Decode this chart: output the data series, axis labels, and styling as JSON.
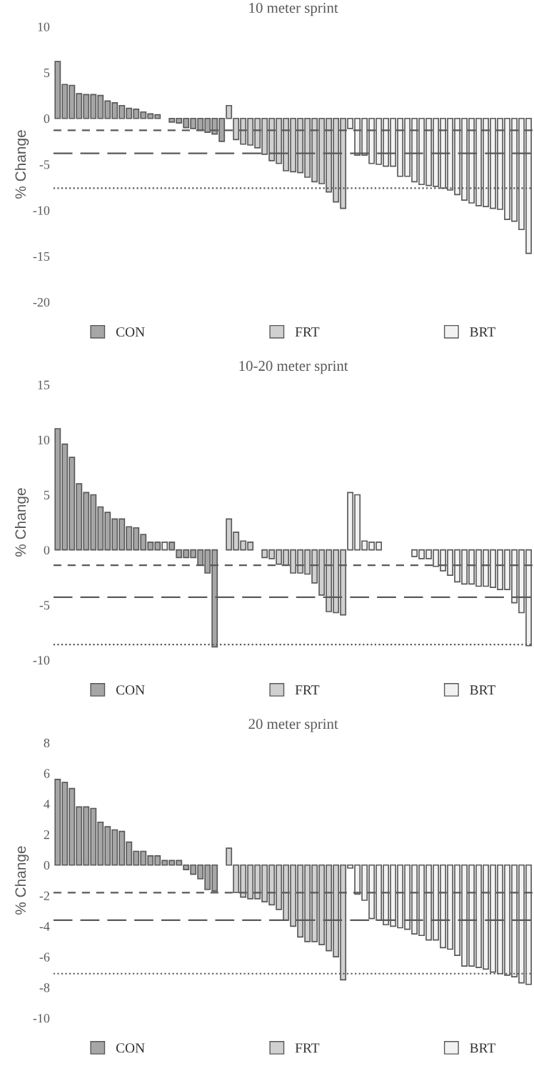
{
  "chart_data": [
    {
      "type": "bar",
      "title": "10 meter sprint",
      "ylabel": "% Change",
      "ylim": [
        -20,
        10
      ],
      "yticks": [
        -20,
        -15,
        -10,
        -5,
        0,
        5,
        10
      ],
      "grid": false,
      "legend": "bottom",
      "tick_labels": "y",
      "categories": [
        null,
        null,
        null,
        null,
        null,
        null,
        null,
        null,
        null,
        null,
        null,
        null,
        null,
        null,
        null,
        null,
        null,
        null,
        null,
        null,
        null,
        null,
        null,
        null,
        null,
        null,
        null,
        null,
        null,
        null,
        null,
        null,
        null,
        null,
        null,
        null,
        null,
        null,
        null,
        null,
        null,
        null,
        null,
        null,
        null,
        null,
        null,
        null,
        null,
        null,
        null,
        null,
        null,
        null,
        null,
        null,
        null,
        null,
        null,
        null,
        null,
        null,
        null,
        null,
        null,
        null,
        null
      ],
      "series": [
        {
          "name": "CON",
          "color": "#a6a6a6",
          "values": [
            6.2,
            3.7,
            3.6,
            2.7,
            2.6,
            2.6,
            2.5,
            1.9,
            1.7,
            1.4,
            1.1,
            1.0,
            0.7,
            0.5,
            0.4,
            null,
            -0.4,
            -0.5,
            -1.0,
            -1.1,
            -1.3,
            -1.5,
            -1.7,
            -2.5,
            null,
            null,
            null,
            null,
            null,
            null,
            null,
            null,
            null,
            null,
            null,
            null,
            null,
            null,
            null,
            null,
            null,
            null,
            null,
            null,
            null,
            null,
            null,
            null,
            null,
            null,
            null,
            null,
            null,
            null,
            null,
            null,
            null,
            null,
            null,
            null,
            null,
            null,
            null,
            null,
            null,
            null,
            null
          ]
        },
        {
          "name": "FRT",
          "color": "#d0d0d0",
          "values": [
            null,
            null,
            null,
            null,
            null,
            null,
            null,
            null,
            null,
            null,
            null,
            null,
            null,
            null,
            null,
            null,
            null,
            null,
            null,
            null,
            null,
            null,
            null,
            null,
            1.4,
            -2.3,
            -2.8,
            -2.9,
            -3.2,
            -3.9,
            -4.6,
            -4.9,
            -5.7,
            -5.8,
            -5.9,
            -6.4,
            -6.9,
            -7.1,
            -8.0,
            -9.1,
            -9.8,
            null,
            null,
            null,
            null,
            null,
            null,
            null,
            null,
            null,
            null,
            null,
            null,
            null,
            null,
            null,
            null,
            null,
            null,
            null,
            null,
            null,
            null,
            null,
            null,
            null,
            null
          ]
        },
        {
          "name": "BRT",
          "color": "#f2f2f2",
          "values": [
            null,
            null,
            null,
            null,
            null,
            null,
            null,
            null,
            null,
            null,
            null,
            null,
            null,
            null,
            null,
            null,
            null,
            null,
            null,
            null,
            null,
            null,
            null,
            null,
            null,
            null,
            null,
            null,
            null,
            null,
            null,
            null,
            null,
            null,
            null,
            null,
            null,
            null,
            null,
            null,
            null,
            -1.1,
            -4.0,
            -4.0,
            -4.9,
            -5.0,
            -5.2,
            -5.2,
            -6.3,
            -6.3,
            -6.9,
            -7.2,
            -7.3,
            -7.4,
            -7.6,
            -7.8,
            -8.3,
            -8.9,
            -9.2,
            -9.5,
            -9.6,
            -9.8,
            -9.9,
            -11.0,
            -11.2,
            -12.1,
            -14.7
          ]
        }
      ],
      "ref_lines": [
        {
          "axis": "y",
          "value": -1.3,
          "color": "#595959",
          "line_style": "dashed"
        },
        {
          "axis": "y",
          "value": -3.8,
          "color": "#595959",
          "line_style": "longdash"
        },
        {
          "axis": "y",
          "value": -7.6,
          "color": "#595959",
          "line_style": "dotted"
        }
      ]
    },
    {
      "type": "bar",
      "title": "10-20 meter sprint",
      "ylabel": "% Change",
      "ylim": [
        -10,
        15
      ],
      "yticks": [
        -10,
        -5,
        0,
        5,
        10,
        15
      ],
      "grid": false,
      "legend": "bottom",
      "tick_labels": "y",
      "categories": [
        null,
        null,
        null,
        null,
        null,
        null,
        null,
        null,
        null,
        null,
        null,
        null,
        null,
        null,
        null,
        null,
        null,
        null,
        null,
        null,
        null,
        null,
        null,
        null,
        null,
        null,
        null,
        null,
        null,
        null,
        null,
        null,
        null,
        null,
        null,
        null,
        null,
        null,
        null,
        null,
        null,
        null,
        null,
        null,
        null,
        null,
        null,
        null,
        null,
        null,
        null,
        null,
        null,
        null,
        null,
        null,
        null,
        null,
        null,
        null,
        null,
        null,
        null,
        null,
        null,
        null,
        null
      ],
      "series": [
        {
          "name": "CON",
          "color": "#a6a6a6",
          "values": [
            11.0,
            9.6,
            8.4,
            6.0,
            5.2,
            5.0,
            3.9,
            3.4,
            2.8,
            2.8,
            2.1,
            2.0,
            1.4,
            0.7,
            0.7,
            null,
            0.7,
            -0.7,
            -0.7,
            -0.7,
            -1.4,
            -2.1,
            -8.8,
            null,
            null,
            null,
            null,
            null,
            null,
            null,
            null,
            null,
            null,
            null,
            null,
            null,
            null,
            null,
            null,
            null,
            null,
            null,
            null,
            null,
            null,
            null,
            null,
            null,
            null,
            null,
            null,
            null,
            null,
            null,
            null,
            null,
            null,
            null,
            null,
            null,
            null,
            null,
            null,
            null,
            null,
            null,
            null
          ]
        },
        {
          "name": "FRT",
          "color": "#d0d0d0",
          "values": [
            null,
            null,
            null,
            null,
            null,
            null,
            null,
            null,
            null,
            null,
            null,
            null,
            null,
            null,
            null,
            null,
            null,
            null,
            null,
            null,
            null,
            null,
            null,
            null,
            2.8,
            1.6,
            0.8,
            0.7,
            null,
            -0.7,
            -0.8,
            -1.3,
            -1.4,
            -2.1,
            -2.1,
            -2.2,
            -3.0,
            -4.1,
            -5.6,
            -5.7,
            -5.9,
            null,
            null,
            null,
            null,
            null,
            null,
            null,
            null,
            null,
            null,
            null,
            null,
            null,
            null,
            null,
            null,
            null,
            null,
            null,
            null,
            null,
            null,
            null,
            null,
            null,
            null
          ]
        },
        {
          "name": "BRT",
          "color": "#f2f2f2",
          "values": [
            null,
            null,
            null,
            null,
            null,
            null,
            null,
            null,
            null,
            null,
            null,
            null,
            null,
            null,
            null,
            0.7,
            null,
            null,
            null,
            null,
            null,
            null,
            null,
            null,
            null,
            null,
            null,
            null,
            null,
            null,
            null,
            null,
            null,
            null,
            null,
            null,
            null,
            null,
            null,
            null,
            null,
            5.2,
            5.0,
            0.8,
            0.7,
            0.7,
            null,
            null,
            null,
            null,
            -0.6,
            -0.8,
            -0.8,
            -1.5,
            -1.9,
            -2.3,
            -2.9,
            -3.1,
            -3.1,
            -3.3,
            -3.3,
            -3.4,
            -3.6,
            -3.6,
            -4.8,
            -5.7,
            -8.7
          ]
        }
      ],
      "ref_lines": [
        {
          "axis": "y",
          "value": -1.4,
          "color": "#595959",
          "line_style": "dashed"
        },
        {
          "axis": "y",
          "value": -4.3,
          "color": "#595959",
          "line_style": "longdash"
        },
        {
          "axis": "y",
          "value": -8.6,
          "color": "#595959",
          "line_style": "dotted"
        }
      ]
    },
    {
      "type": "bar",
      "title": "20 meter sprint",
      "ylabel": "% Change",
      "ylim": [
        -10,
        8
      ],
      "yticks": [
        -10,
        -8,
        -6,
        -4,
        -2,
        0,
        2,
        4,
        6,
        8
      ],
      "grid": false,
      "legend": "bottom",
      "tick_labels": "y",
      "categories": [
        null,
        null,
        null,
        null,
        null,
        null,
        null,
        null,
        null,
        null,
        null,
        null,
        null,
        null,
        null,
        null,
        null,
        null,
        null,
        null,
        null,
        null,
        null,
        null,
        null,
        null,
        null,
        null,
        null,
        null,
        null,
        null,
        null,
        null,
        null,
        null,
        null,
        null,
        null,
        null,
        null,
        null,
        null,
        null,
        null,
        null,
        null,
        null,
        null,
        null,
        null,
        null,
        null,
        null,
        null,
        null,
        null,
        null,
        null,
        null,
        null,
        null,
        null,
        null,
        null,
        null,
        null
      ],
      "series": [
        {
          "name": "CON",
          "color": "#a6a6a6",
          "values": [
            5.6,
            5.4,
            5.0,
            3.8,
            3.8,
            3.7,
            2.8,
            2.5,
            2.3,
            2.2,
            1.5,
            0.9,
            0.9,
            0.6,
            0.6,
            0.3,
            0.3,
            0.3,
            -0.3,
            -0.6,
            -0.9,
            -1.6,
            -1.7,
            null,
            null,
            null,
            null,
            null,
            null,
            null,
            null,
            null,
            null,
            null,
            null,
            null,
            null,
            null,
            null,
            null,
            null,
            null,
            null,
            null,
            null,
            null,
            null,
            null,
            null,
            null,
            null,
            null,
            null,
            null,
            null,
            null,
            null,
            null,
            null,
            null,
            null,
            null,
            null,
            null,
            null,
            null,
            null
          ]
        },
        {
          "name": "FRT",
          "color": "#d0d0d0",
          "values": [
            null,
            null,
            null,
            null,
            null,
            null,
            null,
            null,
            null,
            null,
            null,
            null,
            null,
            null,
            null,
            null,
            null,
            null,
            null,
            null,
            null,
            null,
            null,
            null,
            1.1,
            -1.8,
            -2.1,
            -2.2,
            -2.2,
            -2.4,
            -2.6,
            -2.9,
            -3.6,
            -4.0,
            -4.7,
            -5.0,
            -5.0,
            -5.2,
            -5.6,
            -6.0,
            -7.5,
            null,
            null,
            null,
            null,
            null,
            null,
            null,
            null,
            null,
            null,
            null,
            null,
            null,
            null,
            null,
            null,
            null,
            null,
            null,
            null,
            null,
            null,
            null,
            null,
            null,
            null
          ]
        },
        {
          "name": "BRT",
          "color": "#f2f2f2",
          "values": [
            null,
            null,
            null,
            null,
            null,
            null,
            null,
            null,
            null,
            null,
            null,
            null,
            null,
            null,
            null,
            null,
            null,
            null,
            null,
            null,
            null,
            null,
            null,
            null,
            null,
            null,
            null,
            null,
            null,
            null,
            null,
            null,
            null,
            null,
            null,
            null,
            null,
            null,
            null,
            null,
            null,
            -0.2,
            -1.9,
            -2.3,
            -3.5,
            -3.6,
            -3.9,
            -4.0,
            -4.1,
            -4.2,
            -4.5,
            -4.6,
            -4.9,
            -4.9,
            -5.4,
            -5.5,
            -5.9,
            -6.6,
            -6.6,
            -6.7,
            -6.8,
            -7.0,
            -7.1,
            -7.2,
            -7.3,
            -7.7,
            -7.8
          ]
        }
      ],
      "ref_lines": [
        {
          "axis": "y",
          "value": -1.8,
          "color": "#595959",
          "line_style": "dashed"
        },
        {
          "axis": "y",
          "value": -3.6,
          "color": "#595959",
          "line_style": "longdash"
        },
        {
          "axis": "y",
          "value": -7.1,
          "color": "#595959",
          "line_style": "dotted"
        }
      ]
    }
  ]
}
